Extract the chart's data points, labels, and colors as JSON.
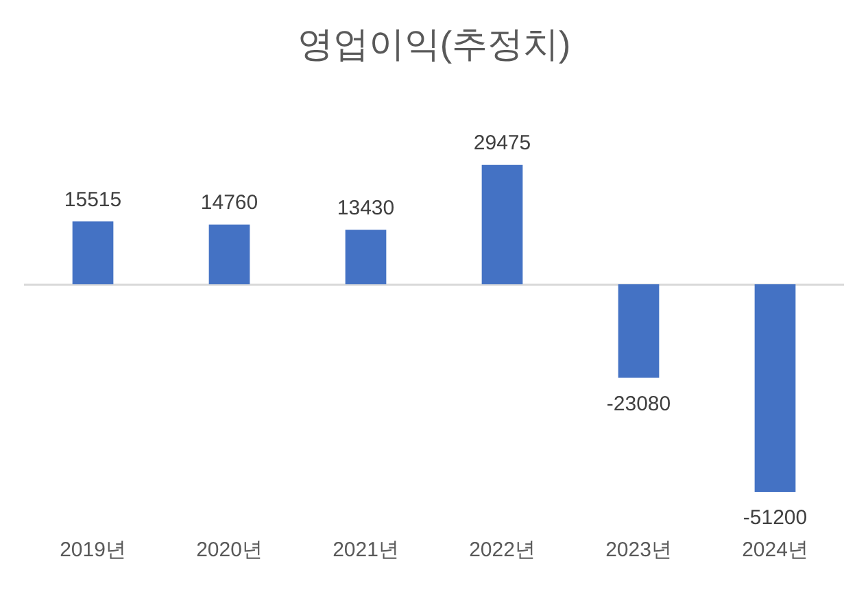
{
  "chart_data": {
    "type": "bar",
    "title": "영업이익(추정치)",
    "categories": [
      "2019년",
      "2020년",
      "2021년",
      "2022년",
      "2023년",
      "2024년"
    ],
    "values": [
      15515,
      14760,
      13430,
      29475,
      -23080,
      -51200
    ],
    "color": "#4472c4",
    "data_labels": true,
    "grid": false,
    "legend": false
  }
}
